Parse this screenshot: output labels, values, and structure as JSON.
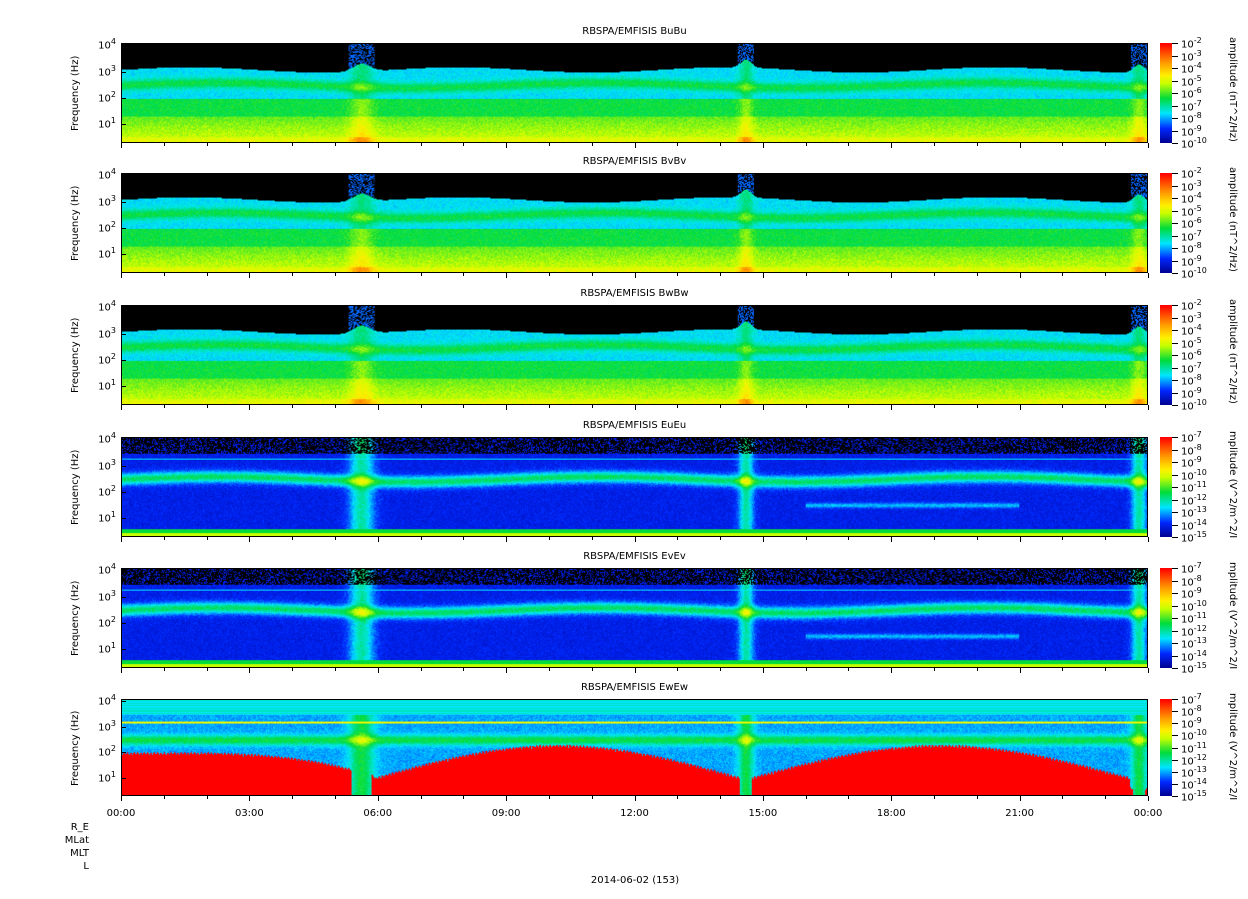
{
  "chart_data": {
    "type": "heatmap",
    "date_label": "2014-06-02 (153)",
    "x_range_hours": [
      0,
      24
    ],
    "x_ticks": [
      "00:00",
      "03:00",
      "06:00",
      "09:00",
      "12:00",
      "15:00",
      "18:00",
      "21:00",
      "00:00"
    ],
    "ephemeris_labels": [
      "R_E",
      "MLat",
      "MLT",
      "L"
    ],
    "ylabel": "Frequency (Hz)",
    "y_ticks": [
      "1",
      "2",
      "3",
      "4"
    ],
    "y_range_hz": [
      2,
      12000
    ],
    "panels": [
      {
        "title": "RBSPA/EMFISIS  BuBu",
        "kind": "B",
        "cbar_label": "amplitude (nT^2/Hz)",
        "cbar_exp": [
          "-2",
          "-3",
          "-4",
          "-5",
          "-6",
          "-7",
          "-8",
          "-9",
          "-10"
        ],
        "cbar_range_log": [
          -10,
          -2
        ]
      },
      {
        "title": "RBSPA/EMFISIS  BvBv",
        "kind": "B",
        "cbar_label": "amplitude (nT^2/Hz)",
        "cbar_exp": [
          "-2",
          "-3",
          "-4",
          "-5",
          "-6",
          "-7",
          "-8",
          "-9",
          "-10"
        ],
        "cbar_range_log": [
          -10,
          -2
        ]
      },
      {
        "title": "RBSPA/EMFISIS  BwBw",
        "kind": "B",
        "cbar_label": "amplitude (nT^2/Hz)",
        "cbar_exp": [
          "-2",
          "-3",
          "-4",
          "-5",
          "-6",
          "-7",
          "-8",
          "-9",
          "-10"
        ],
        "cbar_range_log": [
          -10,
          -2
        ]
      },
      {
        "title": "RBSPA/EMFISIS  EuEu",
        "kind": "E",
        "cbar_label": "mplitude (V^2/m^2/I",
        "cbar_exp": [
          "-7",
          "-8",
          "-9",
          "-10",
          "-11",
          "-12",
          "-13",
          "-14",
          "-15"
        ],
        "cbar_range_log": [
          -15,
          -7
        ]
      },
      {
        "title": "RBSPA/EMFISIS  EvEv",
        "kind": "E",
        "cbar_label": "mplitude (V^2/m^2/I",
        "cbar_exp": [
          "-7",
          "-8",
          "-9",
          "-10",
          "-11",
          "-12",
          "-13",
          "-14",
          "-15"
        ],
        "cbar_range_log": [
          -15,
          -7
        ]
      },
      {
        "title": "RBSPA/EMFISIS  EwEw",
        "kind": "W",
        "cbar_label": "mplitude (V^2/m^2/I",
        "cbar_exp": [
          "-7",
          "-8",
          "-9",
          "-10",
          "-11",
          "-12",
          "-13",
          "-14",
          "-15"
        ],
        "cbar_range_log": [
          -15,
          -7
        ]
      }
    ]
  }
}
